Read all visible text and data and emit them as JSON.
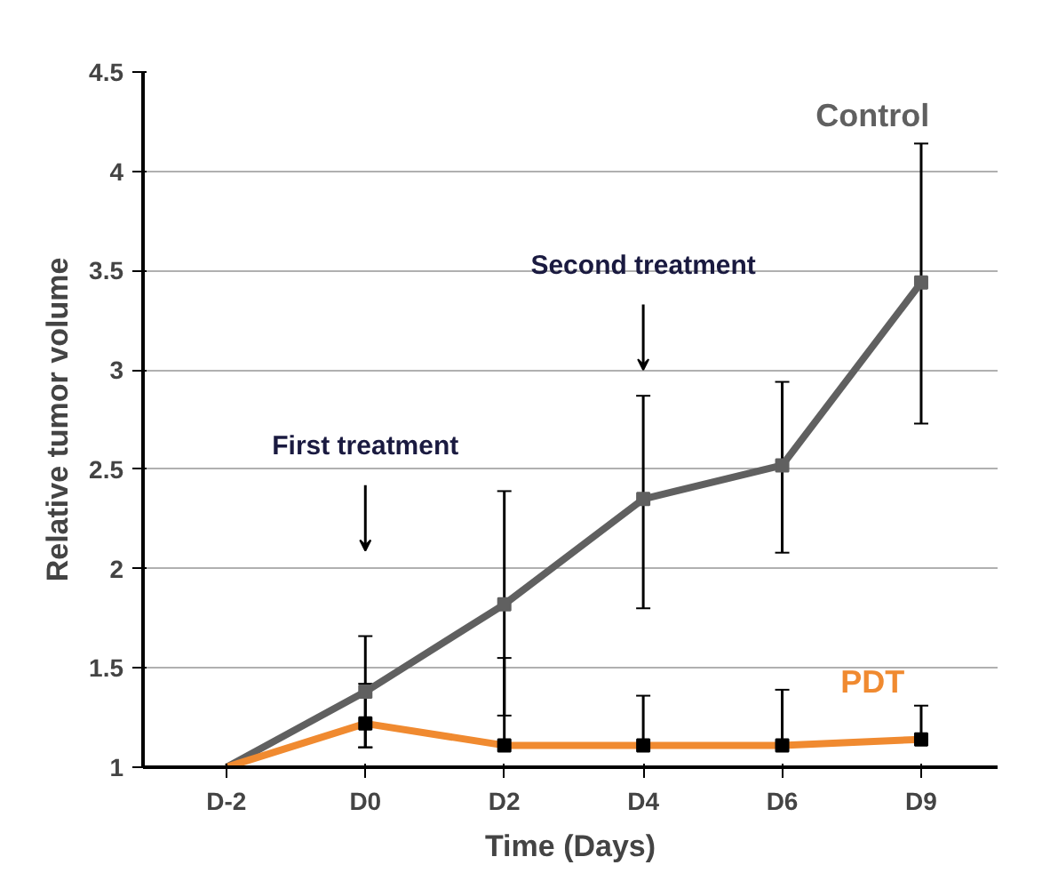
{
  "chart_data": {
    "type": "line",
    "xlabel": "Time (Days)",
    "ylabel": "Relative tumor volume",
    "categories": [
      "D-2",
      "D0",
      "D2",
      "D4",
      "D6",
      "D9"
    ],
    "series": [
      {
        "name": "Control",
        "color": "#606060",
        "values": [
          1.0,
          1.38,
          1.82,
          2.35,
          2.52,
          3.44
        ],
        "errors": [
          null,
          [
            1.1,
            1.66
          ],
          [
            1.26,
            2.39
          ],
          [
            1.8,
            2.87
          ],
          [
            2.08,
            2.94
          ],
          [
            2.73,
            4.14
          ]
        ]
      },
      {
        "name": "PDT",
        "color": "#f08a30",
        "values": [
          1.0,
          1.22,
          1.11,
          1.11,
          1.11,
          1.14
        ],
        "errors": [
          null,
          [
            1.1,
            1.42
          ],
          [
            1.11,
            1.55
          ],
          [
            1.11,
            1.36
          ],
          [
            1.11,
            1.39
          ],
          [
            1.14,
            1.31
          ]
        ]
      }
    ],
    "annotations": [
      "First treatment",
      "Second treatment"
    ],
    "ylim": [
      1,
      4.5
    ],
    "yticks": [
      1,
      1.5,
      2,
      2.5,
      3,
      3.5,
      4,
      4.5
    ],
    "grid": "y",
    "marker": "square"
  }
}
